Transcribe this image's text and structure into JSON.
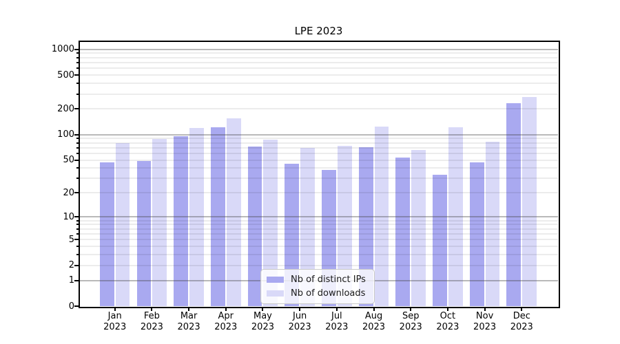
{
  "chart_data": {
    "type": "bar",
    "title": "LPE 2023",
    "x_months": [
      "Jan",
      "Feb",
      "Mar",
      "Apr",
      "May",
      "Jun",
      "Jul",
      "Aug",
      "Sep",
      "Oct",
      "Nov",
      "Dec"
    ],
    "x_year": "2023",
    "categories": [
      "Jan 2023",
      "Feb 2023",
      "Mar 2023",
      "Apr 2023",
      "May 2023",
      "Jun 2023",
      "Jul 2023",
      "Aug 2023",
      "Sep 2023",
      "Oct 2023",
      "Nov 2023",
      "Dec 2023"
    ],
    "series": [
      {
        "name": "Nb of distinct IPs",
        "color": "#a9a9f0",
        "values": [
          47,
          49,
          96,
          123,
          72,
          45,
          38,
          71,
          53,
          33,
          47,
          235
        ]
      },
      {
        "name": "Nb of downloads",
        "color": "#d9d9f8",
        "values": [
          79,
          88,
          120,
          155,
          87,
          70,
          74,
          125,
          66,
          122,
          83,
          278
        ]
      }
    ],
    "yscale": "symlog-log10(1+v)",
    "ytick_values": [
      0,
      1,
      2,
      5,
      10,
      20,
      50,
      100,
      200,
      500,
      1000
    ],
    "ytick_labels": [
      "0",
      "1",
      "2",
      "5",
      "10",
      "20",
      "50",
      "100",
      "200",
      "500",
      "1000"
    ],
    "ylim": [
      0,
      1250
    ],
    "grid": "horizontal major and minor, drawn over bars",
    "legend_position": "lower center inside plot",
    "colors": {
      "major_gridline": "#b0b0b0",
      "minor_gridline": "#ebebeb",
      "spine": "#000000",
      "background": "#ffffff"
    }
  }
}
